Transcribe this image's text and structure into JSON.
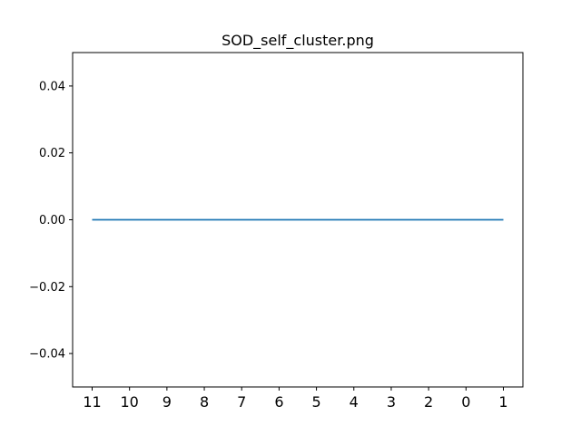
{
  "chart_data": {
    "type": "line",
    "title": "SOD_self_cluster.png",
    "xlabel": "",
    "ylabel": "",
    "categories": [
      "11",
      "10",
      "9",
      "8",
      "7",
      "6",
      "5",
      "4",
      "3",
      "2",
      "0",
      "1"
    ],
    "series": [
      {
        "values": [
          0,
          0,
          0,
          0,
          0,
          0,
          0,
          0,
          0,
          0,
          0,
          0
        ],
        "color": "#1f77b4"
      }
    ],
    "ylim": [
      -0.05,
      0.05
    ],
    "yticks": [
      -0.04,
      -0.02,
      0.0,
      0.02,
      0.04
    ],
    "ytick_labels": [
      "−0.04",
      "−0.02",
      "0.00",
      "0.02",
      "0.04"
    ],
    "grid": false,
    "legend": "none"
  }
}
